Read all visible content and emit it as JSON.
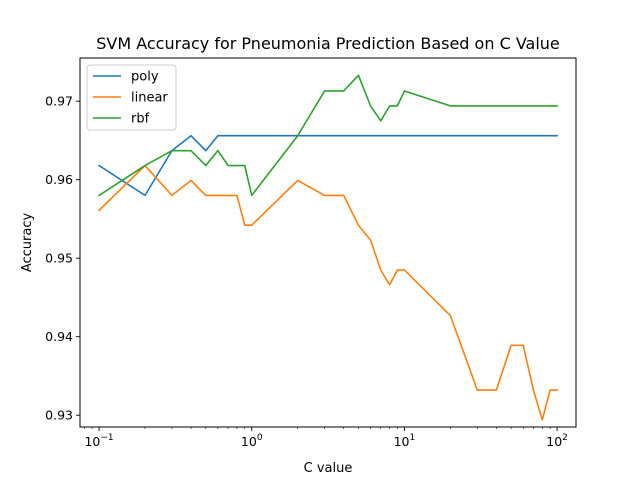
{
  "chart_data": {
    "type": "line",
    "title": "SVM Accuracy for Pneumonia Prediction Based on C Value",
    "xlabel": "C value",
    "ylabel": "Accuracy",
    "xscale": "log",
    "xlim": [
      0.075,
      133
    ],
    "ylim": [
      0.9285,
      0.9755
    ],
    "x_ticks": [
      {
        "value": 0.1,
        "base": "10",
        "exp": "−1"
      },
      {
        "value": 1,
        "base": "10",
        "exp": "0"
      },
      {
        "value": 10,
        "base": "10",
        "exp": "1"
      },
      {
        "value": 100,
        "base": "10",
        "exp": "2"
      }
    ],
    "y_ticks": [
      {
        "value": 0.93,
        "label": "0.93"
      },
      {
        "value": 0.94,
        "label": "0.94"
      },
      {
        "value": 0.95,
        "label": "0.95"
      },
      {
        "value": 0.96,
        "label": "0.96"
      },
      {
        "value": 0.97,
        "label": "0.97"
      }
    ],
    "grid": false,
    "legend_position": "top-left",
    "x": [
      0.1,
      0.2,
      0.3,
      0.4,
      0.5,
      0.6,
      0.7,
      0.8,
      0.9,
      1,
      2,
      3,
      4,
      5,
      6,
      7,
      8,
      9,
      10,
      20,
      30,
      40,
      50,
      60,
      70,
      80,
      90,
      100
    ],
    "series": [
      {
        "name": "poly",
        "color": "#1f77b4",
        "values": [
          0.9618,
          0.958,
          0.9637,
          0.9656,
          0.9637,
          0.9656,
          0.9656,
          0.9656,
          0.9656,
          0.9656,
          0.9656,
          0.9656,
          0.9656,
          0.9656,
          0.9656,
          0.9656,
          0.9656,
          0.9656,
          0.9656,
          0.9656,
          0.9656,
          0.9656,
          0.9656,
          0.9656,
          0.9656,
          0.9656,
          0.9656,
          0.9656
        ]
      },
      {
        "name": "linear",
        "color": "#ff7f0e",
        "values": [
          0.9561,
          0.9618,
          0.958,
          0.9599,
          0.958,
          0.958,
          0.958,
          0.958,
          0.9542,
          0.9542,
          0.9599,
          0.958,
          0.958,
          0.9542,
          0.9523,
          0.9485,
          0.9466,
          0.9485,
          0.9485,
          0.9427,
          0.9332,
          0.9332,
          0.9389,
          0.9389,
          0.9332,
          0.9294,
          0.9332,
          0.9332
        ]
      },
      {
        "name": "rbf",
        "color": "#2ca02c",
        "values": [
          0.958,
          0.9618,
          0.9637,
          0.9637,
          0.9618,
          0.9637,
          0.9618,
          0.9618,
          0.9618,
          0.958,
          0.9656,
          0.9713,
          0.9713,
          0.9733,
          0.9694,
          0.9675,
          0.9694,
          0.9694,
          0.9713,
          0.9694,
          0.9694,
          0.9694,
          0.9694,
          0.9694,
          0.9694,
          0.9694,
          0.9694,
          0.9694
        ]
      }
    ]
  }
}
